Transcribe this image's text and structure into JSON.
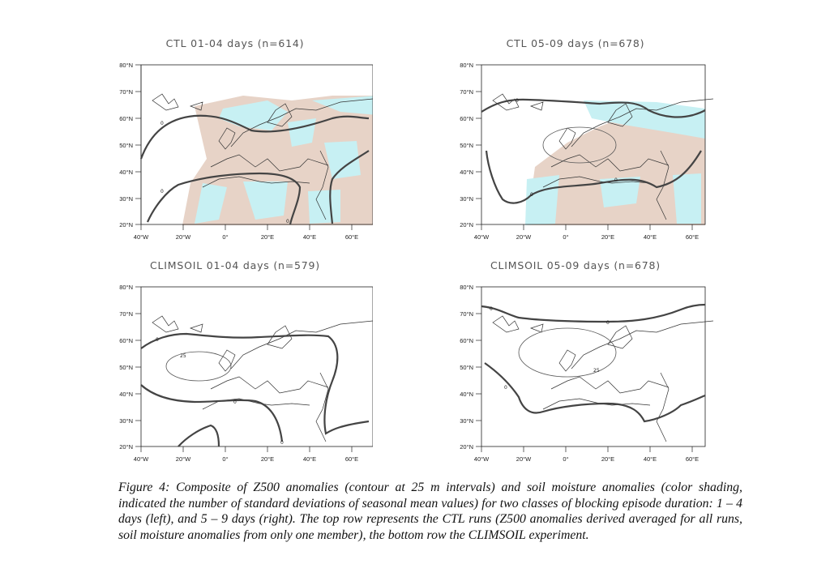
{
  "panels": [
    {
      "title": "CTL 01-04 days (n=614)"
    },
    {
      "title": "CTL 05-09 days (n=678)"
    },
    {
      "title": "CLIMSOIL 01-04 days (n=579)"
    },
    {
      "title": "CLIMSOIL 05-09 days (n=678)"
    }
  ],
  "lat_labels": [
    "80°N",
    "70°N",
    "60°N",
    "50°N",
    "40°N",
    "30°N",
    "20°N"
  ],
  "lon_labels": [
    "40°W",
    "20°W",
    "0°",
    "20°E",
    "40°E",
    "60°E"
  ],
  "contour_labels": {
    "zero": "0",
    "twentyfive": "25"
  },
  "colors": {
    "dry": "#e7d3c7",
    "wet": "#c7f0f3",
    "contour": "#444444"
  },
  "caption": {
    "figure_label": "Figure 4",
    "text": ": Composite of Z500 anomalies (contour at 25 m intervals) and soil moisture anomalies (color shading, indicated the number of standard deviations of seasonal mean values) for two classes of blocking episode duration: 1 – 4 days (left), and 5 – 9 days (right). The top row represents the CTL runs (Z500 anomalies derived averaged for all runs, soil moisture anomalies from only one member), the bottom row the CLIMSOIL experiment."
  }
}
